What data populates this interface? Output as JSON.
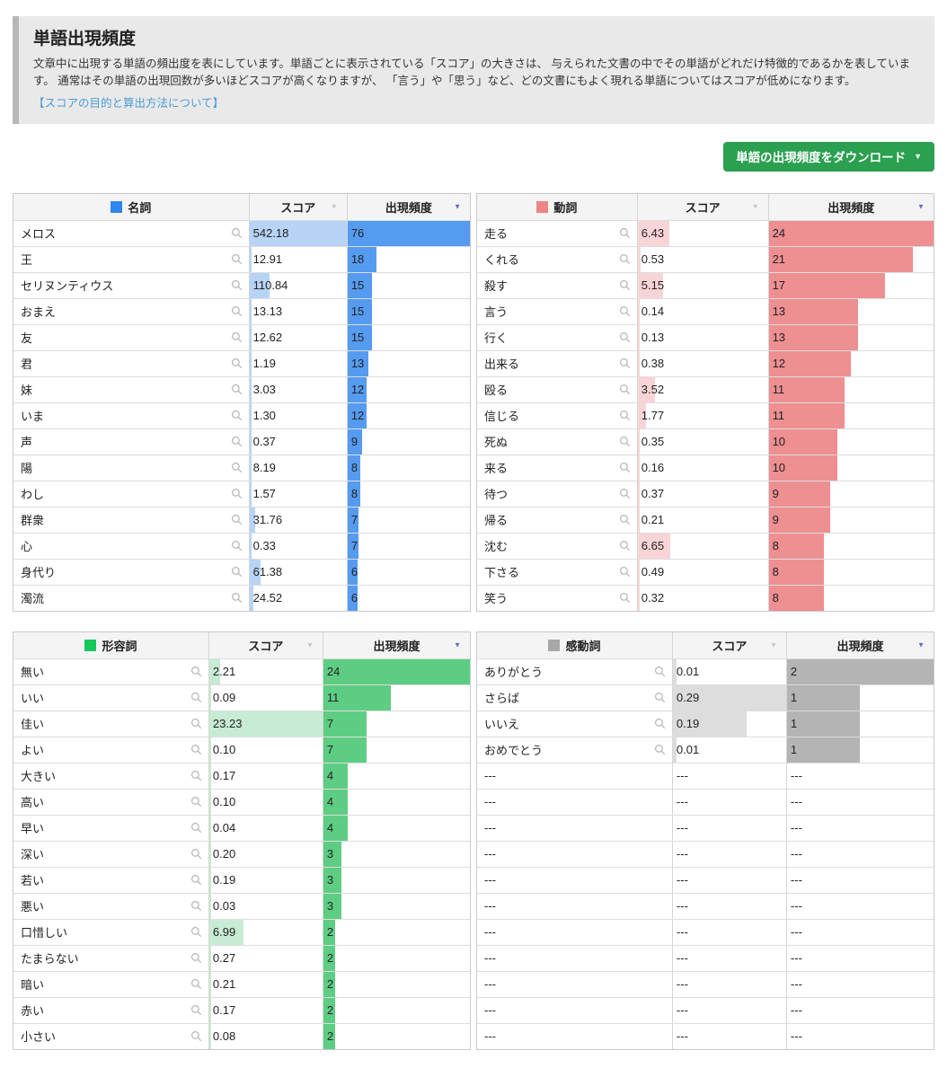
{
  "page": {
    "title": "単語出現頻度",
    "description": "文章中に出現する単語の頻出度を表にしています。単語ごとに表示されている「スコア」の大きさは、 与えられた文書の中でその単語がどれだけ特徴的であるかを表しています。 通常はその単語の出現回数が多いほどスコアが高くなりますが、 「言う」や「思う」など、どの文書にもよく現れる単語についてはスコアが低めになります。",
    "link_text": "【スコアの目的と算出方法について】",
    "download_button": "単語の出現頻度をダウンロード"
  },
  "columns": {
    "score": "スコア",
    "frequency": "出現頻度"
  },
  "icons": {
    "sort_desc": "▼",
    "button_caret": "▼",
    "search": "magnifier"
  },
  "colors": {
    "intro_background": "#e9e9e9",
    "intro_accent": "#b7b7b7",
    "link": "#4a9cd9",
    "button_green": "#2aa050",
    "sort_arrow_inactive": "#c6c6c6",
    "sort_arrow_active": "#5b6ad0"
  },
  "tables": [
    {
      "key": "nouns",
      "label": "名詞",
      "legend_color": "#2e86f0",
      "score_bar_color": "#b7d3f6",
      "freq_bar_color": "#559bf0",
      "col_widths": "51.5% 21.5% 27%",
      "rows": [
        {
          "word": "メロス",
          "score": "542.18",
          "freq": "76",
          "score_pct": 100,
          "freq_pct": 100
        },
        {
          "word": "王",
          "score": "12.91",
          "freq": "18",
          "score_pct": 2.4,
          "freq_pct": 23.7
        },
        {
          "word": "セリヌンティウス",
          "score": "110.84",
          "freq": "15",
          "score_pct": 20.4,
          "freq_pct": 19.7
        },
        {
          "word": "おまえ",
          "score": "13.13",
          "freq": "15",
          "score_pct": 2.4,
          "freq_pct": 19.7
        },
        {
          "word": "友",
          "score": "12.62",
          "freq": "15",
          "score_pct": 2.3,
          "freq_pct": 19.7
        },
        {
          "word": "君",
          "score": "1.19",
          "freq": "13",
          "score_pct": 0.2,
          "freq_pct": 17.1
        },
        {
          "word": "妹",
          "score": "3.03",
          "freq": "12",
          "score_pct": 0.6,
          "freq_pct": 15.8
        },
        {
          "word": "いま",
          "score": "1.30",
          "freq": "12",
          "score_pct": 0.2,
          "freq_pct": 15.8
        },
        {
          "word": "声",
          "score": "0.37",
          "freq": "9",
          "score_pct": 0.1,
          "freq_pct": 11.8
        },
        {
          "word": "陽",
          "score": "8.19",
          "freq": "8",
          "score_pct": 1.5,
          "freq_pct": 10.5
        },
        {
          "word": "わし",
          "score": "1.57",
          "freq": "8",
          "score_pct": 0.3,
          "freq_pct": 10.5
        },
        {
          "word": "群衆",
          "score": "31.76",
          "freq": "7",
          "score_pct": 5.9,
          "freq_pct": 9.2
        },
        {
          "word": "心",
          "score": "0.33",
          "freq": "7",
          "score_pct": 0.1,
          "freq_pct": 9.2
        },
        {
          "word": "身代り",
          "score": "61.38",
          "freq": "6",
          "score_pct": 11.3,
          "freq_pct": 7.9
        },
        {
          "word": "濁流",
          "score": "24.52",
          "freq": "6",
          "score_pct": 4.5,
          "freq_pct": 7.9
        }
      ]
    },
    {
      "key": "verbs",
      "label": "動詞",
      "legend_color": "#ee8585",
      "score_bar_color": "#f9d4d6",
      "freq_bar_color": "#ee8f92",
      "col_widths": "35% 28.7% 36.3%",
      "rows": [
        {
          "word": "走る",
          "score": "6.43",
          "freq": "24",
          "score_pct": 24.2,
          "freq_pct": 100
        },
        {
          "word": "くれる",
          "score": "0.53",
          "freq": "21",
          "score_pct": 2.0,
          "freq_pct": 87.5
        },
        {
          "word": "殺す",
          "score": "5.15",
          "freq": "17",
          "score_pct": 19.4,
          "freq_pct": 70.8
        },
        {
          "word": "言う",
          "score": "0.14",
          "freq": "13",
          "score_pct": 0.5,
          "freq_pct": 54.2
        },
        {
          "word": "行く",
          "score": "0.13",
          "freq": "13",
          "score_pct": 0.5,
          "freq_pct": 54.2
        },
        {
          "word": "出来る",
          "score": "0.38",
          "freq": "12",
          "score_pct": 1.4,
          "freq_pct": 50
        },
        {
          "word": "殴る",
          "score": "3.52",
          "freq": "11",
          "score_pct": 13.2,
          "freq_pct": 45.8
        },
        {
          "word": "信じる",
          "score": "1.77",
          "freq": "11",
          "score_pct": 6.7,
          "freq_pct": 45.8
        },
        {
          "word": "死ぬ",
          "score": "0.35",
          "freq": "10",
          "score_pct": 1.3,
          "freq_pct": 41.7
        },
        {
          "word": "来る",
          "score": "0.16",
          "freq": "10",
          "score_pct": 0.6,
          "freq_pct": 41.7
        },
        {
          "word": "待つ",
          "score": "0.37",
          "freq": "9",
          "score_pct": 1.4,
          "freq_pct": 37.5
        },
        {
          "word": "帰る",
          "score": "0.21",
          "freq": "9",
          "score_pct": 0.8,
          "freq_pct": 37.5
        },
        {
          "word": "沈む",
          "score": "6.65",
          "freq": "8",
          "score_pct": 25,
          "freq_pct": 33.3
        },
        {
          "word": "下さる",
          "score": "0.49",
          "freq": "8",
          "score_pct": 1.8,
          "freq_pct": 33.3
        },
        {
          "word": "笑う",
          "score": "0.32",
          "freq": "8",
          "score_pct": 1.2,
          "freq_pct": 33.3
        }
      ]
    },
    {
      "key": "adjectives",
      "label": "形容詞",
      "legend_color": "#16c75c",
      "score_bar_color": "#c7ebd3",
      "freq_bar_color": "#5ecd84",
      "col_widths": "42.7% 25% 32.3%",
      "rows": [
        {
          "word": "無い",
          "score": "2.21",
          "freq": "24",
          "score_pct": 9.5,
          "freq_pct": 100
        },
        {
          "word": "いい",
          "score": "0.09",
          "freq": "11",
          "score_pct": 0.4,
          "freq_pct": 45.8
        },
        {
          "word": "佳い",
          "score": "23.23",
          "freq": "7",
          "score_pct": 100,
          "freq_pct": 29.2
        },
        {
          "word": "よい",
          "score": "0.10",
          "freq": "7",
          "score_pct": 0.4,
          "freq_pct": 29.2
        },
        {
          "word": "大きい",
          "score": "0.17",
          "freq": "4",
          "score_pct": 0.7,
          "freq_pct": 16.7
        },
        {
          "word": "高い",
          "score": "0.10",
          "freq": "4",
          "score_pct": 0.4,
          "freq_pct": 16.7
        },
        {
          "word": "早い",
          "score": "0.04",
          "freq": "4",
          "score_pct": 0.2,
          "freq_pct": 16.7
        },
        {
          "word": "深い",
          "score": "0.20",
          "freq": "3",
          "score_pct": 0.9,
          "freq_pct": 12.5
        },
        {
          "word": "若い",
          "score": "0.19",
          "freq": "3",
          "score_pct": 0.8,
          "freq_pct": 12.5
        },
        {
          "word": "悪い",
          "score": "0.03",
          "freq": "3",
          "score_pct": 0.1,
          "freq_pct": 12.5
        },
        {
          "word": "口惜しい",
          "score": "6.99",
          "freq": "2",
          "score_pct": 30.1,
          "freq_pct": 8.3
        },
        {
          "word": "たまらない",
          "score": "0.27",
          "freq": "2",
          "score_pct": 1.2,
          "freq_pct": 8.3
        },
        {
          "word": "暗い",
          "score": "0.21",
          "freq": "2",
          "score_pct": 0.9,
          "freq_pct": 8.3
        },
        {
          "word": "赤い",
          "score": "0.17",
          "freq": "2",
          "score_pct": 0.7,
          "freq_pct": 8.3
        },
        {
          "word": "小さい",
          "score": "0.08",
          "freq": "2",
          "score_pct": 0.3,
          "freq_pct": 8.3
        }
      ]
    },
    {
      "key": "interjections",
      "label": "感動詞",
      "legend_color": "#a8a8a8",
      "score_bar_color": "#dddddd",
      "freq_bar_color": "#b4b4b4",
      "col_widths": "42.7% 25% 32.3%",
      "rows": [
        {
          "word": "ありがとう",
          "score": "0.01",
          "freq": "2",
          "score_pct": 3.4,
          "freq_pct": 100
        },
        {
          "word": "さらば",
          "score": "0.29",
          "freq": "1",
          "score_pct": 100,
          "freq_pct": 50
        },
        {
          "word": "いいえ",
          "score": "0.19",
          "freq": "1",
          "score_pct": 65.5,
          "freq_pct": 50
        },
        {
          "word": "おめでとう",
          "score": "0.01",
          "freq": "1",
          "score_pct": 3.4,
          "freq_pct": 50
        },
        {
          "word": "---",
          "score": "---",
          "freq": "---",
          "empty": true
        },
        {
          "word": "---",
          "score": "---",
          "freq": "---",
          "empty": true
        },
        {
          "word": "---",
          "score": "---",
          "freq": "---",
          "empty": true
        },
        {
          "word": "---",
          "score": "---",
          "freq": "---",
          "empty": true
        },
        {
          "word": "---",
          "score": "---",
          "freq": "---",
          "empty": true
        },
        {
          "word": "---",
          "score": "---",
          "freq": "---",
          "empty": true
        },
        {
          "word": "---",
          "score": "---",
          "freq": "---",
          "empty": true
        },
        {
          "word": "---",
          "score": "---",
          "freq": "---",
          "empty": true
        },
        {
          "word": "---",
          "score": "---",
          "freq": "---",
          "empty": true
        },
        {
          "word": "---",
          "score": "---",
          "freq": "---",
          "empty": true
        },
        {
          "word": "---",
          "score": "---",
          "freq": "---",
          "empty": true
        }
      ]
    }
  ]
}
